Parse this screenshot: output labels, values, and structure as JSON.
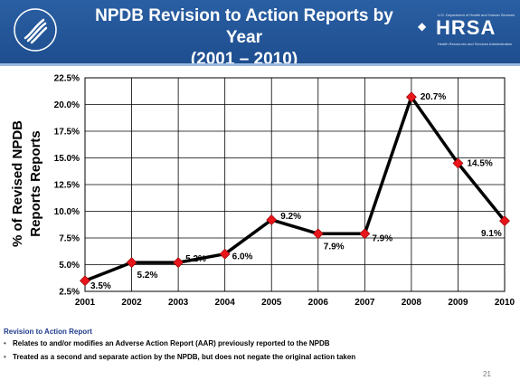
{
  "header": {
    "title_line1": "NPDB Revision to Action Reports by Year",
    "title_line2": "(2001 – 2010)",
    "hrsa_word": "HRSA",
    "hrsa_top": "U.S. Department of Health and Human Services",
    "hrsa_sub": "Health Resources and Services Administration"
  },
  "chart_data": {
    "type": "line",
    "x": [
      2001,
      2002,
      2003,
      2004,
      2005,
      2006,
      2007,
      2008,
      2009,
      2010
    ],
    "y": [
      3.5,
      5.2,
      5.2,
      6.0,
      9.2,
      7.9,
      7.9,
      20.7,
      14.5,
      9.1
    ],
    "data_labels": [
      "3.5%",
      "5.2%",
      "5.2%",
      "6.0%",
      "9.2%",
      "7.9%",
      "7.9%",
      "20.7%",
      "14.5%",
      "9.1%"
    ],
    "yticks": [
      "2.5%",
      "5.0%",
      "7.5%",
      "10.0%",
      "12.5%",
      "15.0%",
      "17.5%",
      "20.0%",
      "22.5%"
    ],
    "ylim": [
      2.5,
      22.5
    ],
    "ylabel_line1": "% of Revised NPDB",
    "ylabel_line2": "Reports Reports",
    "grid": true,
    "line_color": "#000000",
    "marker_color": "#e8151b"
  },
  "notes": {
    "heading": "Revision to Action Report",
    "bullets": [
      "Relates to and/or modifies an Adverse Action Report (AAR) previously reported to the NPDB",
      "Treated as a second and separate action by the NPDB, but does not negate the original action taken"
    ]
  },
  "page_number": "21"
}
